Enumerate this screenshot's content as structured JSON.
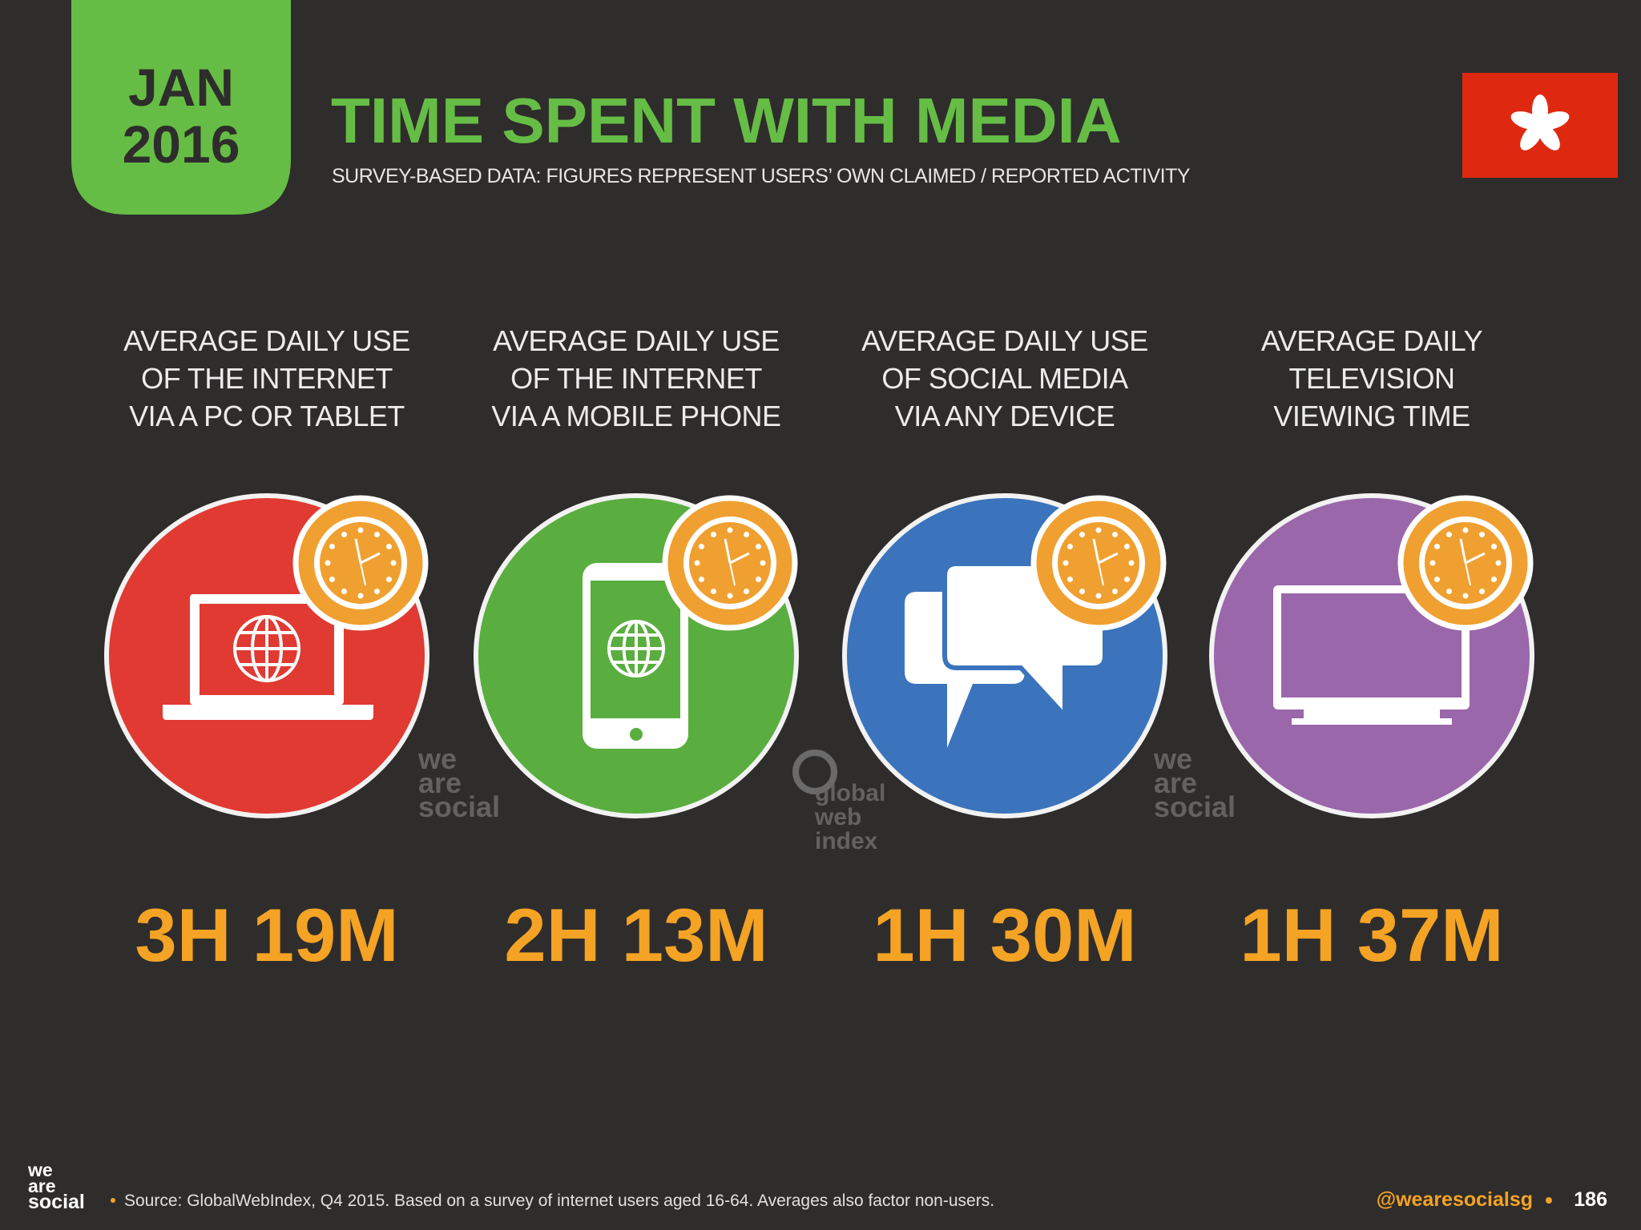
{
  "header": {
    "date": [
      "JAN",
      "2016"
    ],
    "title": "TIME SPENT WITH MEDIA",
    "subtitle": "SURVEY-BASED DATA: FIGURES REPRESENT USERS’ OWN CLAIMED / REPORTED ACTIVITY"
  },
  "items": [
    {
      "label": [
        "AVERAGE DAILY USE",
        "OF THE INTERNET",
        "VIA A PC OR TABLET"
      ],
      "value": "3H 19M"
    },
    {
      "label": [
        "AVERAGE DAILY USE",
        "OF THE INTERNET",
        "VIA A MOBILE PHONE"
      ],
      "value": "2H 13M"
    },
    {
      "label": [
        "AVERAGE DAILY USE",
        "OF SOCIAL MEDIA",
        "VIA ANY DEVICE"
      ],
      "value": "1H 30M"
    },
    {
      "label": [
        "AVERAGE DAILY",
        "TELEVISION",
        "VIEWING TIME"
      ],
      "value": "1H 37M"
    }
  ],
  "watermarks": [
    [
      "we",
      "are",
      "social"
    ],
    [
      "global",
      "web",
      "index"
    ],
    [
      "we",
      "are",
      "social"
    ]
  ],
  "footer": {
    "logo": [
      "we",
      "are",
      "social"
    ],
    "source": "Source: GlobalWebIndex, Q4 2015. Based on a survey of internet users aged 16-64. Averages also factor non-users.",
    "handle": "@wearesocialsg",
    "page": "186"
  }
}
